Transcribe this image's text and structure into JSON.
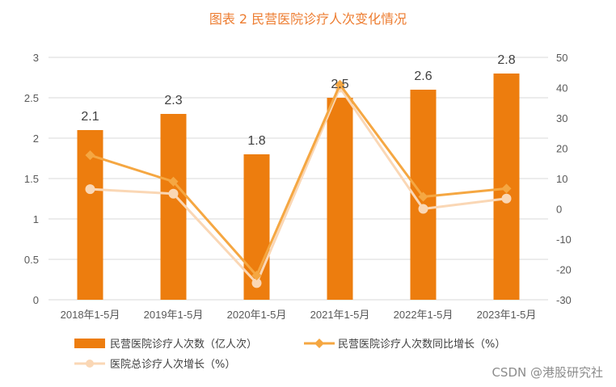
{
  "chart_data": {
    "type": "bar",
    "title": "图表 2 民营医院诊疗人次变化情况",
    "categories": [
      "2018年1-5月",
      "2019年1-5月",
      "2020年1-5月",
      "2021年1-5月",
      "2022年1-5月",
      "2023年1-5月"
    ],
    "series": [
      {
        "name": "民营医院诊疗人次数（亿人次）",
        "type": "bar",
        "axis": "left",
        "color": "#ED7D0E",
        "values": [
          2.1,
          2.3,
          1.8,
          2.5,
          2.6,
          2.8
        ],
        "data_labels": [
          "2.1",
          "2.3",
          "1.8",
          "2.5",
          "2.6",
          "2.8"
        ]
      },
      {
        "name": "民营医院诊疗人次数同比增长（%）",
        "type": "line",
        "axis": "right",
        "color": "#F5A742",
        "marker": "diamond",
        "values": [
          17.7,
          9,
          -22,
          41,
          4,
          6.7
        ]
      },
      {
        "name": "医院总诊疗人次增长（%）",
        "type": "line",
        "axis": "right",
        "color": "#FAD7B5",
        "marker": "circle",
        "values": [
          6.5,
          5,
          -24.5,
          40,
          0,
          3.4
        ]
      }
    ],
    "y_left": {
      "min": 0,
      "max": 3,
      "ticks": [
        "0",
        "0.5",
        "1",
        "1.5",
        "2",
        "2.5",
        "3"
      ]
    },
    "y_right": {
      "min": -30,
      "max": 50,
      "ticks": [
        "-30",
        "-20",
        "-10",
        "0",
        "10",
        "20",
        "30",
        "40",
        "50"
      ]
    },
    "grid": true,
    "legend_position": "bottom"
  },
  "watermark": "CSDN @港股研究社",
  "colors": {
    "title": "#ED7D31",
    "axis": "#D9D9D9",
    "text": "#595959"
  }
}
